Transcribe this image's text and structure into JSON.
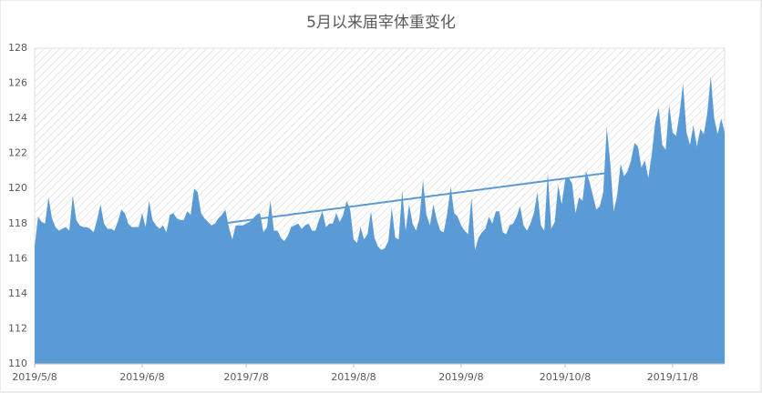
{
  "chart_data": {
    "type": "area",
    "title": "5月以来届宰体重变化",
    "categories": [
      "2019/5/8",
      null,
      null,
      null,
      null,
      null,
      null,
      null,
      null,
      null,
      null,
      null,
      null,
      null,
      null,
      null,
      null,
      null,
      null,
      null,
      null,
      null,
      null,
      null,
      null,
      null,
      null,
      null,
      null,
      null,
      null,
      "2019/6/8",
      null,
      null,
      null,
      null,
      null,
      null,
      null,
      null,
      null,
      null,
      null,
      null,
      null,
      null,
      null,
      null,
      null,
      null,
      null,
      null,
      null,
      null,
      null,
      null,
      null,
      null,
      null,
      null,
      null,
      "2019/7/8",
      null,
      null,
      null,
      null,
      null,
      null,
      null,
      null,
      null,
      null,
      null,
      null,
      null,
      null,
      null,
      null,
      null,
      null,
      null,
      null,
      null,
      null,
      null,
      null,
      null,
      null,
      null,
      null,
      null,
      null,
      "2019/8/8",
      null,
      null,
      null,
      null,
      null,
      null,
      null,
      null,
      null,
      null,
      null,
      null,
      null,
      null,
      null,
      null,
      null,
      null,
      null,
      null,
      null,
      null,
      null,
      null,
      null,
      null,
      null,
      null,
      null,
      null,
      "2019/9/8",
      null,
      null,
      null,
      null,
      null,
      null,
      null,
      null,
      null,
      null,
      null,
      null,
      null,
      null,
      null,
      null,
      null,
      null,
      null,
      null,
      null,
      null,
      null,
      null,
      null,
      null,
      null,
      null,
      null,
      "2019/10/8",
      null,
      null,
      null,
      null,
      null,
      null,
      null,
      null,
      null,
      null,
      null,
      null,
      null,
      null,
      null,
      null,
      null,
      null,
      null,
      null,
      null,
      null,
      null,
      null,
      null,
      null,
      null,
      null,
      null,
      null,
      "2019/11/8",
      null,
      null,
      null,
      null,
      null,
      null,
      null,
      null,
      null,
      null,
      null,
      null,
      null,
      null,
      null
    ],
    "series": [
      {
        "type": "area",
        "color": "#5b9bd5",
        "values": [
          116.7,
          118.4,
          118.1,
          118.0,
          119.5,
          118.3,
          117.8,
          117.6,
          117.7,
          117.8,
          117.6,
          119.6,
          118.2,
          117.9,
          117.8,
          117.8,
          117.7,
          117.5,
          118.2,
          119.1,
          118.0,
          117.7,
          117.7,
          117.6,
          118.1,
          118.8,
          118.6,
          118.0,
          117.8,
          117.8,
          117.8,
          118.6,
          117.8,
          119.3,
          118.2,
          117.9,
          117.7,
          117.9,
          117.5,
          118.5,
          118.6,
          118.3,
          118.2,
          118.2,
          118.7,
          118.5,
          120.0,
          119.8,
          118.6,
          118.3,
          118.1,
          117.9,
          118.0,
          118.3,
          118.5,
          118.8,
          117.8,
          117.1,
          117.9,
          117.9,
          117.9,
          118.0,
          118.1,
          118.3,
          118.5,
          118.6,
          117.5,
          117.8,
          119.3,
          117.6,
          117.6,
          117.2,
          117.0,
          117.3,
          117.8,
          117.9,
          118.0,
          117.7,
          117.9,
          118.0,
          117.6,
          117.6,
          118.2,
          118.7,
          117.8,
          118.0,
          118.0,
          118.6,
          118.1,
          118.5,
          119.3,
          118.8,
          117.1,
          116.9,
          117.8,
          117.1,
          117.4,
          118.7,
          117.2,
          116.7,
          116.5,
          116.6,
          117.0,
          118.9,
          117.2,
          117.1,
          119.9,
          117.6,
          119.1,
          118.0,
          117.6,
          118.3,
          120.5,
          118.5,
          117.9,
          119.1,
          118.2,
          117.6,
          117.5,
          118.6,
          120.1,
          118.6,
          118.4,
          117.9,
          117.6,
          117.4,
          119.5,
          116.5,
          117.2,
          117.5,
          117.7,
          118.4,
          118.0,
          118.7,
          118.7,
          117.5,
          117.4,
          117.9,
          118.0,
          118.4,
          119.0,
          117.9,
          117.6,
          118.0,
          118.6,
          119.8,
          117.9,
          117.6,
          120.9,
          117.7,
          118.1,
          120.2,
          119.1,
          120.5,
          120.6,
          120.3,
          118.6,
          119.5,
          119.3,
          121.0,
          120.4,
          119.6,
          118.8,
          119.0,
          119.8,
          123.5,
          121.5,
          118.7,
          119.6,
          121.4,
          120.7,
          121.0,
          121.6,
          122.6,
          122.4,
          121.2,
          121.6,
          120.6,
          122.0,
          123.8,
          124.6,
          122.5,
          122.2,
          124.8,
          123.2,
          123.0,
          124.3,
          126.0,
          123.2,
          122.5,
          123.6,
          122.4,
          123.4,
          123.1,
          124.3,
          126.4,
          124.0,
          123.1,
          124.0,
          123.2
        ]
      },
      {
        "type": "line",
        "color": "#5b9bd5",
        "values": [
          null,
          null,
          null,
          null,
          null,
          null,
          null,
          null,
          null,
          null,
          null,
          null,
          null,
          null,
          null,
          null,
          null,
          null,
          null,
          null,
          null,
          null,
          null,
          null,
          null,
          null,
          null,
          null,
          null,
          null,
          null,
          null,
          null,
          null,
          null,
          null,
          null,
          null,
          null,
          null,
          null,
          null,
          null,
          null,
          null,
          null,
          null,
          null,
          null,
          null,
          null,
          null,
          null,
          null,
          118.0,
          118.03,
          118.05,
          118.08,
          118.1,
          118.13,
          118.16,
          118.18,
          118.21,
          118.23,
          118.26,
          118.29,
          118.31,
          118.34,
          118.36,
          118.39,
          118.42,
          118.44,
          118.47,
          118.49,
          118.52,
          118.55,
          118.57,
          118.6,
          118.62,
          118.65,
          118.68,
          118.7,
          118.73,
          118.75,
          118.78,
          118.81,
          118.83,
          118.86,
          118.88,
          118.91,
          118.94,
          118.96,
          118.99,
          119.01,
          119.04,
          119.07,
          119.09,
          119.12,
          119.14,
          119.17,
          119.2,
          119.22,
          119.25,
          119.27,
          119.3,
          119.33,
          119.35,
          119.38,
          119.4,
          119.43,
          119.46,
          119.48,
          119.51,
          119.53,
          119.56,
          119.59,
          119.61,
          119.64,
          119.66,
          119.69,
          119.72,
          119.74,
          119.77,
          119.79,
          119.82,
          119.85,
          119.87,
          119.9,
          119.92,
          119.95,
          119.98,
          120.0,
          120.03,
          120.05,
          120.08,
          120.11,
          120.13,
          120.16,
          120.18,
          120.21,
          120.24,
          120.26,
          120.29,
          120.31,
          120.34,
          120.37,
          120.39,
          120.42,
          120.44,
          120.47,
          120.5,
          120.52,
          120.55,
          120.57,
          120.6,
          120.63,
          120.65,
          120.68,
          120.7,
          120.73,
          120.76,
          120.78,
          120.81,
          120.83,
          120.86,
          120.89,
          120.91,
          null,
          null,
          null,
          null,
          null,
          null,
          null,
          null,
          null,
          null,
          null,
          null,
          null,
          null,
          null,
          null,
          null,
          null,
          null,
          null,
          null,
          null,
          null,
          null,
          null,
          null,
          null,
          null,
          null,
          null,
          null,
          null,
          null
        ]
      }
    ],
    "ylim": [
      110,
      128
    ],
    "yticks": [
      110,
      112,
      114,
      116,
      118,
      120,
      122,
      124,
      126,
      128
    ],
    "grid": false
  }
}
